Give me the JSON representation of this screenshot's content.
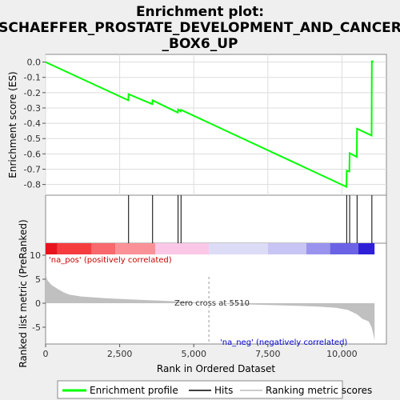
{
  "title_lines": [
    "Enrichment plot:",
    "SCHAEFFER_PROSTATE_DEVELOPMENT_AND_CANCER",
    "_BOX6_UP"
  ],
  "chart_data": {
    "type": "line",
    "x_range": [
      0,
      11500
    ],
    "x_ticks": [
      0,
      2500,
      5000,
      7500,
      10000
    ],
    "x_tick_labels": [
      "0",
      "2,500",
      "5,000",
      "7,500",
      "10,000"
    ],
    "xlabel": "Rank in Ordered Dataset",
    "es_panel": {
      "ylabel": "Enrichment score (ES)",
      "ylim": [
        -0.87,
        0.05
      ],
      "y_ticks": [
        0.0,
        -0.1,
        -0.2,
        -0.3,
        -0.4,
        -0.5,
        -0.6,
        -0.7,
        -0.8
      ],
      "y_tick_labels": [
        "0.0",
        "-0.1",
        "-0.2",
        "-0.3",
        "-0.4",
        "-0.5",
        "-0.6",
        "-0.7",
        "-0.8"
      ],
      "series": [
        {
          "name": "Enrichment profile",
          "color": "#00ff00",
          "x": [
            0,
            2790,
            2800,
            3600,
            3610,
            4460,
            4470,
            4560,
            4570,
            10150,
            10160,
            10250,
            10260,
            10500,
            10510,
            11000,
            11010,
            11060
          ],
          "y": [
            0.0,
            -0.25,
            -0.21,
            -0.275,
            -0.25,
            -0.33,
            -0.31,
            -0.322,
            -0.312,
            -0.815,
            -0.71,
            -0.715,
            -0.595,
            -0.62,
            -0.435,
            -0.48,
            0.005,
            0.005
          ]
        }
      ]
    },
    "hits": {
      "name": "Hits",
      "x": [
        2800,
        3610,
        4470,
        4570,
        10160,
        10260,
        10510,
        11010
      ]
    },
    "ranked_list": {
      "ylabel": "Ranked list metric (PreRanked)",
      "ylim": [
        -8.5,
        12.5
      ],
      "y_ticks": [
        10,
        5,
        0,
        -5
      ],
      "y_tick_labels": [
        "10",
        "5",
        "0",
        "-5"
      ],
      "series_name": "Ranking metric scores",
      "profile": [
        [
          0,
          6.2
        ],
        [
          60,
          4.8
        ],
        [
          200,
          3.8
        ],
        [
          400,
          3.0
        ],
        [
          600,
          2.3
        ],
        [
          800,
          1.8
        ],
        [
          1200,
          1.4
        ],
        [
          2000,
          1.05
        ],
        [
          3000,
          0.75
        ],
        [
          4000,
          0.5
        ],
        [
          5000,
          0.2
        ],
        [
          5510,
          0.0
        ],
        [
          6500,
          -0.2
        ],
        [
          8000,
          -0.45
        ],
        [
          9200,
          -0.7
        ],
        [
          9800,
          -0.95
        ],
        [
          10200,
          -1.4
        ],
        [
          10500,
          -2.3
        ],
        [
          10700,
          -3.3
        ],
        [
          10900,
          -3.8
        ],
        [
          11000,
          -5.0
        ],
        [
          11060,
          -6.5
        ],
        [
          11100,
          -7.8
        ]
      ],
      "zero_cross_label": "Zero cross at 5510",
      "zero_cross_x": 5510,
      "pos_label": "'na_pos' (positively correlated)",
      "neg_label": "'na_neg' (negatively correlated)"
    },
    "color_bar": [
      {
        "x0": 0,
        "x1": 400,
        "color": "#e8141d"
      },
      {
        "x0": 400,
        "x1": 1550,
        "color": "#f53d40"
      },
      {
        "x0": 1550,
        "x1": 2350,
        "color": "#f8686c"
      },
      {
        "x0": 2350,
        "x1": 3700,
        "color": "#fa9196"
      },
      {
        "x0": 3700,
        "x1": 5510,
        "color": "#fbc7e6"
      },
      {
        "x0": 5510,
        "x1": 7500,
        "color": "#dcdcf7"
      },
      {
        "x0": 7500,
        "x1": 8800,
        "color": "#c8c5f5"
      },
      {
        "x0": 8800,
        "x1": 9600,
        "color": "#9993ee"
      },
      {
        "x0": 9600,
        "x1": 10550,
        "color": "#6b62e6"
      },
      {
        "x0": 10550,
        "x1": 11100,
        "color": "#2f20d8"
      }
    ]
  },
  "legend": {
    "items": [
      {
        "label": "Enrichment profile",
        "color": "#00ff00"
      },
      {
        "label": "Hits",
        "color": "#000000"
      },
      {
        "label": "Ranking metric scores",
        "color": "#bbbbbb"
      }
    ]
  }
}
